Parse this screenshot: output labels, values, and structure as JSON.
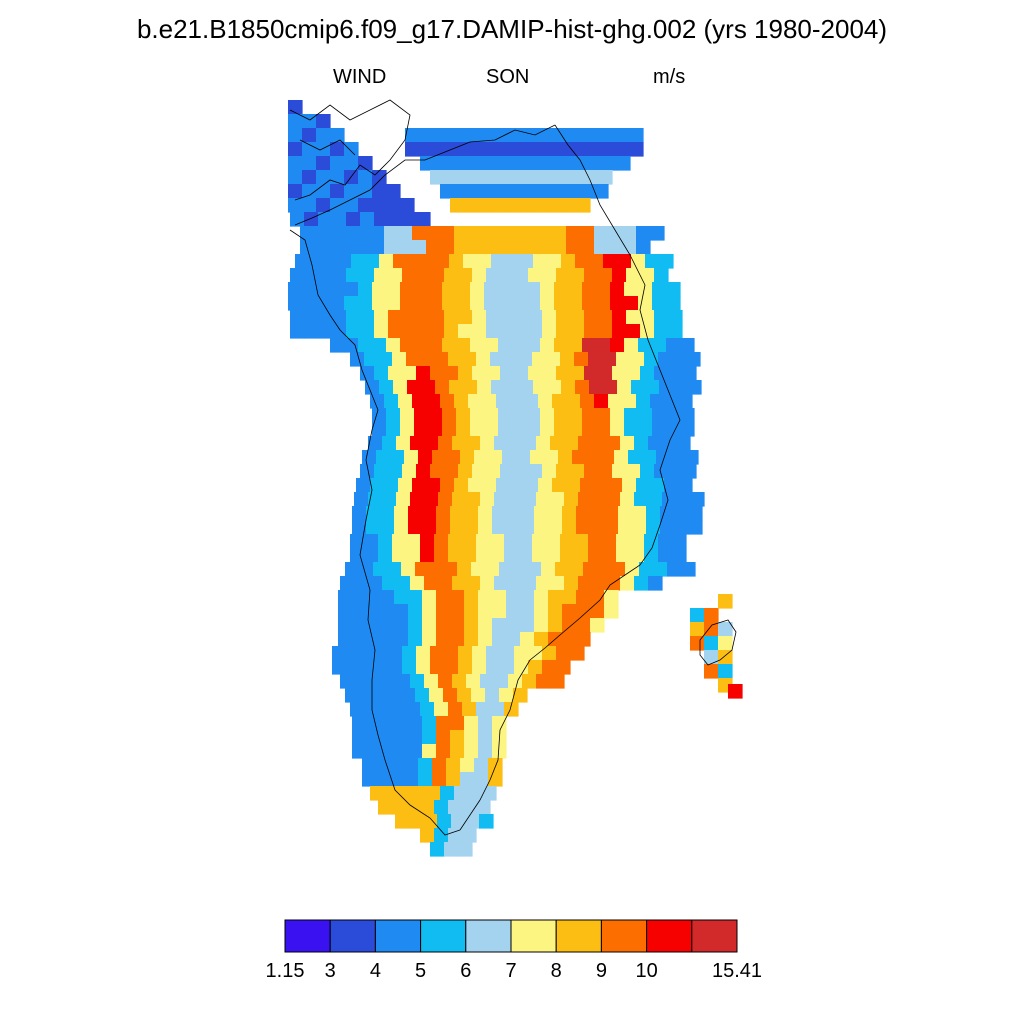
{
  "title": "b.e21.B1850cmip6.f09_g17.DAMIP-hist-ghg.002 (yrs 1980-2004)",
  "subtitle": {
    "variable": "WIND",
    "season": "SON",
    "units": "m/s"
  },
  "colorbar": {
    "labels": [
      "1.15",
      "3",
      "4",
      "5",
      "6",
      "7",
      "8",
      "9",
      "10",
      "15.41"
    ],
    "colors": [
      "#3a12f2",
      "#2b4bd9",
      "#1f8bf2",
      "#10bcf2",
      "#a3d3ef",
      "#fdf582",
      "#fdbe14",
      "#fd6e00",
      "#f60000",
      "#d22a2a"
    ]
  },
  "map": {
    "region": "Greenland",
    "field": "surface wind speed climatology",
    "levels_note": "filled contour cells colored by bin 1..10"
  }
}
